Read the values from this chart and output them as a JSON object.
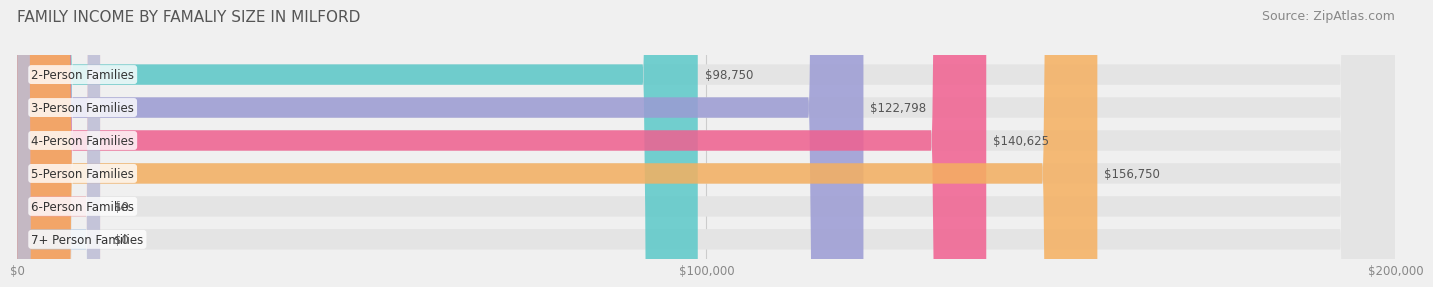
{
  "title": "FAMILY INCOME BY FAMALIY SIZE IN MILFORD",
  "source": "Source: ZipAtlas.com",
  "categories": [
    "2-Person Families",
    "3-Person Families",
    "4-Person Families",
    "5-Person Families",
    "6-Person Families",
    "7+ Person Families"
  ],
  "values": [
    98750,
    122798,
    140625,
    156750,
    0,
    0
  ],
  "bar_colors": [
    "#5bc8c8",
    "#9b9bd4",
    "#f06090",
    "#f5b060",
    "#f0a0a8",
    "#a8c8e8"
  ],
  "value_labels": [
    "$98,750",
    "$122,798",
    "$140,625",
    "$156,750",
    "$0",
    "$0"
  ],
  "xlim": [
    0,
    200000
  ],
  "xtick_values": [
    0,
    100000,
    200000
  ],
  "xtick_labels": [
    "$0",
    "$100,000",
    "$200,000"
  ],
  "background_color": "#f0f0f0",
  "bar_background_color": "#e4e4e4",
  "title_fontsize": 11,
  "source_fontsize": 9,
  "label_fontsize": 8.5,
  "value_fontsize": 8.5,
  "bar_height": 0.62
}
